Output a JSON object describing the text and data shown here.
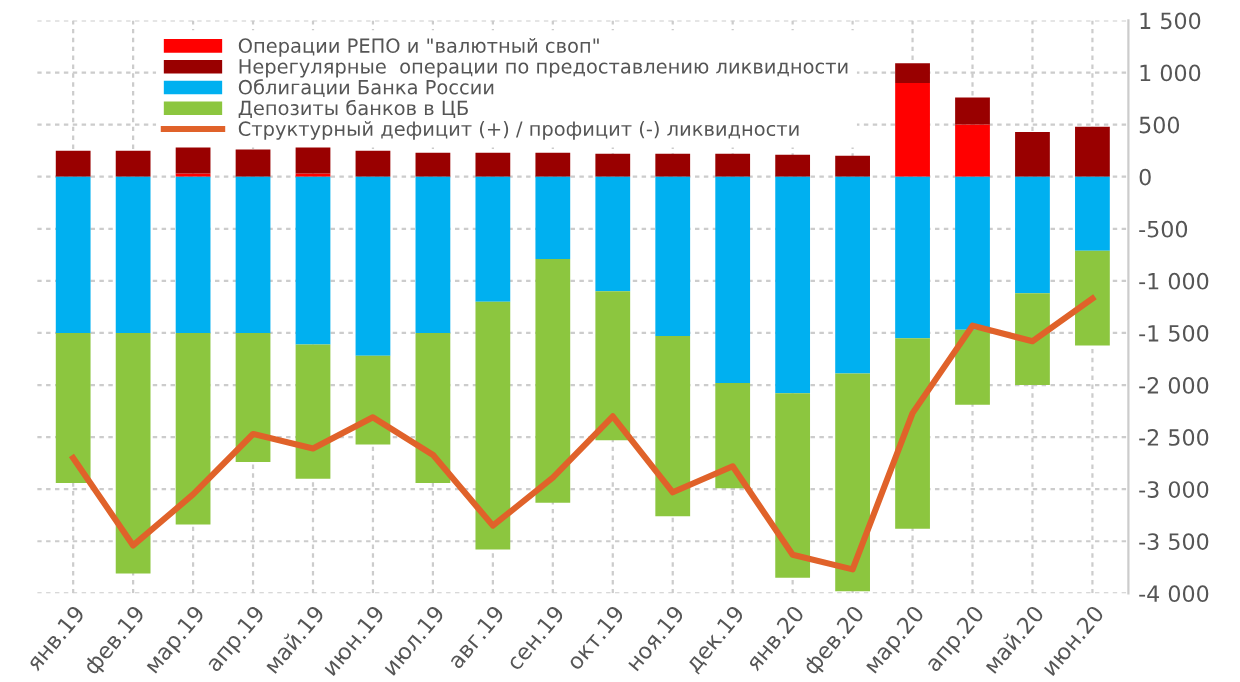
{
  "chart_data": {
    "type": "bar",
    "stacked": true,
    "categories": [
      "янв.19",
      "фев.19",
      "мар.19",
      "апр.19",
      "май.19",
      "июн.19",
      "июл.19",
      "авг.19",
      "сен.19",
      "окт.19",
      "ноя.19",
      "дек.19",
      "янв.20",
      "фев.20",
      "мар.20",
      "апр.20",
      "май.20",
      "июн.20"
    ],
    "series": [
      {
        "name": "Операции РЕПО и \"валютный своп\"",
        "color": "#ff0000",
        "values": [
          0,
          0,
          30,
          0,
          30,
          0,
          0,
          0,
          0,
          0,
          0,
          0,
          0,
          0,
          900,
          500,
          0,
          0
        ]
      },
      {
        "name": "Нерегулярные  операции по предоставлению ликвидности",
        "color": "#990000",
        "values": [
          250,
          250,
          260,
          260,
          260,
          250,
          230,
          230,
          230,
          220,
          220,
          220,
          210,
          200,
          190,
          260,
          430,
          480
        ]
      },
      {
        "name": "Облигации Банка России",
        "color": "#00b0f0",
        "values": [
          -1500,
          -1500,
          -1500,
          -1500,
          -1610,
          -1720,
          -1500,
          -1200,
          -790,
          -1100,
          -1530,
          -1980,
          -2080,
          -1890,
          -1550,
          -1470,
          -1120,
          -710
        ]
      },
      {
        "name": "Депозиты банков в ЦБ",
        "color": "#8cc63f",
        "values": [
          -1440,
          -2310,
          -1840,
          -1240,
          -1290,
          -850,
          -1440,
          -2380,
          -2340,
          -1430,
          -1730,
          -1010,
          -1770,
          -2090,
          -1830,
          -720,
          -880,
          -910
        ]
      },
      {
        "name": "Структурный дефицит (+) / профицит (-) ликвидности",
        "type": "line",
        "color": "#e0622a",
        "values": [
          -2700,
          -3540,
          -3050,
          -2470,
          -2610,
          -2310,
          -2670,
          -3350,
          -2890,
          -2300,
          -3030,
          -2780,
          -3630,
          -3770,
          -2270,
          -1430,
          -1580,
          -1170
        ]
      }
    ],
    "ylim": [
      -4000,
      1500
    ],
    "yticks": [
      {
        "value": -4000,
        "label": "-4 000"
      },
      {
        "value": -3500,
        "label": "-3 500"
      },
      {
        "value": -3000,
        "label": "-3 000"
      },
      {
        "value": -2500,
        "label": "-2 500"
      },
      {
        "value": -2000,
        "label": "-2 000"
      },
      {
        "value": -1500,
        "label": "-1 500"
      },
      {
        "value": -1000,
        "label": "-1 000"
      },
      {
        "value": -500,
        "label": "-500"
      },
      0,
      500,
      {
        "value": 1000,
        "label": "1 000"
      },
      {
        "value": 1500,
        "label": "1 500"
      }
    ],
    "grid": true,
    "legend": "top left"
  }
}
